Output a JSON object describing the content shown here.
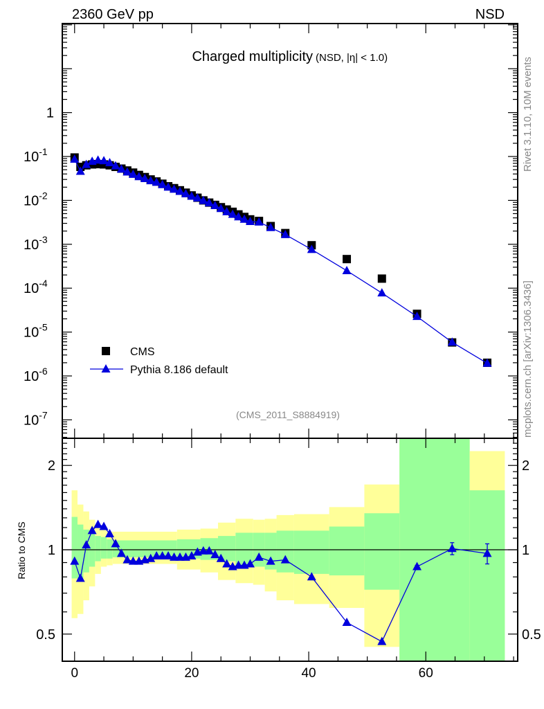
{
  "header": {
    "left": "2360 GeV pp",
    "right": "NSD"
  },
  "side_text": {
    "top": "Rivet 3.1.10,  10M events",
    "bottom": "mcplots.cern.ch [arXiv:1306.3436]"
  },
  "analysis_id": "(CMS_2011_S8884919)",
  "colors": {
    "cms": "#000000",
    "pythia": "#0000dd",
    "band_inner": "#99ff99",
    "band_outer": "#ffff99"
  },
  "chart_data": [
    {
      "type": "scatter",
      "title": "Charged multiplicity",
      "subtitle": "(NSD, |η| < 1.0)",
      "xlabel": "",
      "ylabel": "",
      "xlim": [
        -2.1,
        75.7
      ],
      "ylim": [
        3.8e-08,
        107
      ],
      "yscale": "log",
      "ytick_labels": [
        {
          "v": 1,
          "base": "1",
          "exp": ""
        },
        {
          "v": 0.1,
          "base": "10",
          "exp": "-1"
        },
        {
          "v": 0.01,
          "base": "10",
          "exp": "-2"
        },
        {
          "v": 0.001,
          "base": "10",
          "exp": "-3"
        },
        {
          "v": 0.0001,
          "base": "10",
          "exp": "-4"
        },
        {
          "v": 1e-05,
          "base": "10",
          "exp": "-5"
        },
        {
          "v": 1e-06,
          "base": "10",
          "exp": "-6"
        },
        {
          "v": 1e-07,
          "base": "10",
          "exp": "-7"
        }
      ],
      "legend_position": "bottom-left",
      "series": [
        {
          "name": "CMS",
          "marker": "square",
          "x": [
            0,
            1,
            2,
            3,
            4,
            5,
            6,
            7,
            8,
            9,
            10,
            11,
            12,
            13,
            14,
            15,
            16,
            17,
            18,
            19,
            20,
            21,
            22,
            23,
            24,
            25,
            26,
            27,
            28,
            29,
            30,
            31.5,
            33.5,
            36,
            40.5,
            46.5,
            52.5,
            58.5,
            64.5,
            70.5
          ],
          "y": [
            0.095,
            0.058,
            0.063,
            0.066,
            0.067,
            0.066,
            0.063,
            0.058,
            0.053,
            0.048,
            0.043,
            0.038,
            0.034,
            0.03,
            0.027,
            0.024,
            0.021,
            0.019,
            0.017,
            0.015,
            0.013,
            0.0115,
            0.01,
            0.0089,
            0.0079,
            0.007,
            0.0062,
            0.0055,
            0.0048,
            0.0042,
            0.0037,
            0.0034,
            0.0026,
            0.0018,
            0.00095,
            0.00046,
            0.000165,
            2.6e-05,
            5.8e-06,
            2e-06
          ]
        },
        {
          "name": "Pythia 8.186 default",
          "marker": "triangle",
          "x": [
            0,
            1,
            2,
            3,
            4,
            5,
            6,
            7,
            8,
            9,
            10,
            11,
            12,
            13,
            14,
            15,
            16,
            17,
            18,
            19,
            20,
            21,
            22,
            23,
            24,
            25,
            26,
            27,
            28,
            29,
            30,
            31.5,
            33.5,
            36,
            40.5,
            46.5,
            52.5,
            58.5,
            64.5,
            70.5
          ],
          "y": [
            0.0865,
            0.0458,
            0.0655,
            0.0772,
            0.0824,
            0.0799,
            0.0718,
            0.0609,
            0.0514,
            0.0442,
            0.0391,
            0.0346,
            0.0313,
            0.0279,
            0.0257,
            0.0228,
            0.02,
            0.0179,
            0.016,
            0.0141,
            0.0124,
            0.0113,
            0.0099,
            0.0088,
            0.0076,
            0.0065,
            0.0055,
            0.0048,
            0.0042,
            0.0037,
            0.0033,
            0.0032,
            0.0024,
            0.00166,
            0.00076,
            0.00025,
            7.76e-05,
            2.26e-05,
            5.86e-06,
            1.94e-06
          ]
        }
      ]
    },
    {
      "type": "line",
      "ylabel": "Ratio to CMS",
      "xlim": [
        -2.1,
        75.7
      ],
      "ylim": [
        0.4,
        2.5
      ],
      "yscale": "log",
      "xtick_labels": [
        "0",
        "20",
        "40",
        "60"
      ],
      "xtick_values": [
        0,
        20,
        40,
        60
      ],
      "ytick_labels": [
        "0.5",
        "1",
        "2"
      ],
      "ytick_values": [
        0.5,
        1,
        2
      ],
      "reference_line": 1,
      "bands": [
        {
          "x": [
            -0.5,
            0.5
          ],
          "inner": [
            0.79,
            1.31
          ],
          "outer": [
            0.57,
            1.63
          ]
        },
        {
          "x": [
            0.5,
            1.5
          ],
          "inner": [
            0.79,
            1.23
          ],
          "outer": [
            0.59,
            1.45
          ]
        },
        {
          "x": [
            1.5,
            2.5
          ],
          "inner": [
            0.83,
            1.18
          ],
          "outer": [
            0.66,
            1.37
          ]
        },
        {
          "x": [
            2.5,
            3.5
          ],
          "inner": [
            0.87,
            1.15
          ],
          "outer": [
            0.74,
            1.28
          ]
        },
        {
          "x": [
            3.5,
            4.5
          ],
          "inner": [
            0.91,
            1.12
          ],
          "outer": [
            0.82,
            1.21
          ]
        },
        {
          "x": [
            4.5,
            5.5
          ],
          "inner": [
            0.93,
            1.11
          ],
          "outer": [
            0.87,
            1.19
          ]
        },
        {
          "x": [
            5.5,
            6.5
          ],
          "inner": [
            0.93,
            1.09
          ],
          "outer": [
            0.88,
            1.16
          ]
        },
        {
          "x": [
            6.5,
            17.5
          ],
          "inner": [
            0.94,
            1.08
          ],
          "outer": [
            0.89,
            1.16
          ]
        },
        {
          "x": [
            17.5,
            21.5
          ],
          "inner": [
            0.93,
            1.09
          ],
          "outer": [
            0.85,
            1.18
          ]
        },
        {
          "x": [
            21.5,
            24.5
          ],
          "inner": [
            0.92,
            1.1
          ],
          "outer": [
            0.83,
            1.19
          ]
        },
        {
          "x": [
            24.5,
            27.5
          ],
          "inner": [
            0.91,
            1.12
          ],
          "outer": [
            0.78,
            1.25
          ]
        },
        {
          "x": [
            27.5,
            30.5
          ],
          "inner": [
            0.87,
            1.15
          ],
          "outer": [
            0.76,
            1.29
          ]
        },
        {
          "x": [
            30.5,
            32.5
          ],
          "inner": [
            0.87,
            1.15
          ],
          "outer": [
            0.75,
            1.28
          ]
        },
        {
          "x": [
            32.5,
            34.5
          ],
          "inner": [
            0.85,
            1.15
          ],
          "outer": [
            0.71,
            1.29
          ]
        },
        {
          "x": [
            34.5,
            37.5
          ],
          "inner": [
            0.83,
            1.17
          ],
          "outer": [
            0.66,
            1.33
          ]
        },
        {
          "x": [
            37.5,
            43.5
          ],
          "inner": [
            0.82,
            1.17
          ],
          "outer": [
            0.64,
            1.34
          ]
        },
        {
          "x": [
            43.5,
            49.5
          ],
          "inner": [
            0.81,
            1.21
          ],
          "outer": [
            0.62,
            1.42
          ]
        },
        {
          "x": [
            49.5,
            55.5
          ],
          "inner": [
            0.72,
            1.35
          ],
          "outer": [
            0.45,
            1.71
          ]
        },
        {
          "x": [
            55.5,
            67.5
          ],
          "inner": [
            0.3,
            3.0
          ],
          "outer": [
            0.3,
            3.0
          ]
        },
        {
          "x": [
            67.5,
            73.5
          ],
          "inner": [
            0.3,
            1.63
          ],
          "outer": [
            0.3,
            2.25
          ]
        }
      ],
      "series": [
        {
          "name": "Pythia 8.186 default / CMS",
          "x": [
            0,
            1,
            2,
            3,
            4,
            5,
            6,
            7,
            8,
            9,
            10,
            11,
            12,
            13,
            14,
            15,
            16,
            17,
            18,
            19,
            20,
            21,
            22,
            23,
            24,
            25,
            26,
            27,
            28,
            29,
            30,
            31.5,
            33.5,
            36,
            40.5,
            46.5,
            52.5,
            58.5,
            64.5,
            70.5
          ],
          "y": [
            0.91,
            0.79,
            1.04,
            1.17,
            1.23,
            1.21,
            1.14,
            1.05,
            0.97,
            0.92,
            0.91,
            0.91,
            0.92,
            0.93,
            0.95,
            0.95,
            0.95,
            0.94,
            0.94,
            0.94,
            0.95,
            0.98,
            0.99,
            0.99,
            0.96,
            0.93,
            0.89,
            0.87,
            0.88,
            0.88,
            0.89,
            0.94,
            0.91,
            0.92,
            0.8,
            0.55,
            0.47,
            0.87,
            1.01,
            0.97
          ],
          "err": [
            0,
            0,
            0,
            0,
            0,
            0,
            0,
            0,
            0,
            0,
            0,
            0,
            0,
            0,
            0,
            0,
            0,
            0,
            0,
            0,
            0,
            0,
            0,
            0,
            0,
            0,
            0,
            0,
            0,
            0,
            0,
            0,
            0,
            0,
            0,
            0,
            0,
            0.01,
            0.05,
            0.08
          ]
        }
      ]
    }
  ]
}
